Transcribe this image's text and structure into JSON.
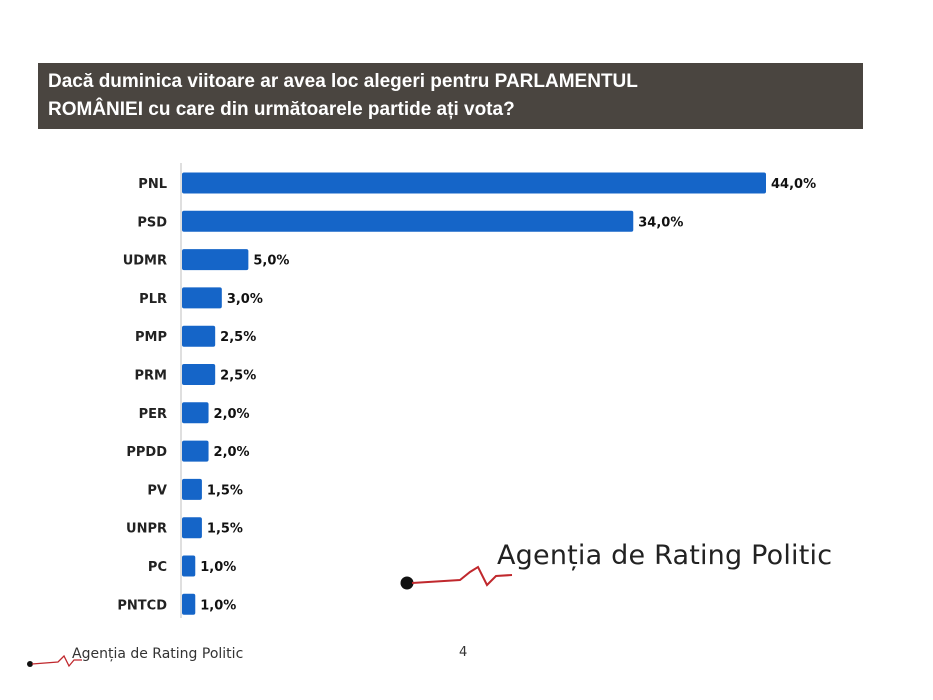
{
  "title": {
    "line1": "Dacă duminica viitoare ar avea loc alegeri pentru PARLAMENTUL",
    "line2": "ROMÂNIEI cu care din următoarele partide ați vota?"
  },
  "chart_data": {
    "type": "bar",
    "orientation": "horizontal",
    "categories": [
      "PNL",
      "PSD",
      "UDMR",
      "PLR",
      "PMP",
      "PRM",
      "PER",
      "PPDD",
      "PV",
      "UNPR",
      "PC",
      "PNTCD"
    ],
    "values": [
      44.0,
      34.0,
      5.0,
      3.0,
      2.5,
      2.5,
      2.0,
      2.0,
      1.5,
      1.5,
      1.0,
      1.0
    ],
    "value_labels": [
      "44,0%",
      "34,0%",
      "5,0%",
      "3,0%",
      "2,5%",
      "2,5%",
      "2,0%",
      "2,0%",
      "1,5%",
      "1,5%",
      "1,0%",
      "1,0%"
    ],
    "title": "Dacă duminica viitoare ar avea loc alegeri pentru PARLAMENTUL ROMÂNIEI cu care din următoarele partide ați vota?",
    "xlabel": "",
    "ylabel": "",
    "xlim": [
      0,
      45
    ],
    "grid": false,
    "legend": "none"
  },
  "colors": {
    "bar": "#1565c8",
    "title_bg": "#4a4540",
    "logo_line": "#c0282d"
  },
  "branding": {
    "large": "Agenția de Rating Politic",
    "small": "Agenția de Rating Politic"
  },
  "footer": {
    "page_number": "4"
  }
}
